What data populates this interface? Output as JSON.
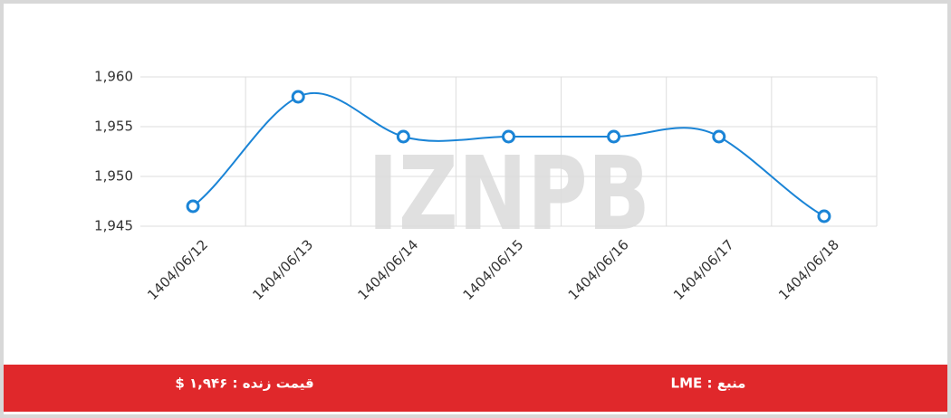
{
  "chart_data": {
    "type": "line",
    "categories": [
      "1404/06/12",
      "1404/06/13",
      "1404/06/14",
      "1404/06/15",
      "1404/06/16",
      "1404/06/17",
      "1404/06/18"
    ],
    "series": [
      {
        "color": "#1a84d6",
        "values": [
          1947,
          1958,
          1954,
          1954,
          1954,
          1954,
          1946
        ]
      }
    ],
    "ylim": [
      1945,
      1960
    ],
    "yticks": [
      {
        "value": 1945,
        "label": "1,945"
      },
      {
        "value": 1950,
        "label": "1,950"
      },
      {
        "value": 1955,
        "label": "1,955"
      },
      {
        "value": 1960,
        "label": "1,960"
      }
    ],
    "grid": true
  },
  "watermark": "IZNPB",
  "footer": {
    "price": "قیمت زنده : ۱,۹۴۶ $",
    "source": "منبع : LME"
  }
}
